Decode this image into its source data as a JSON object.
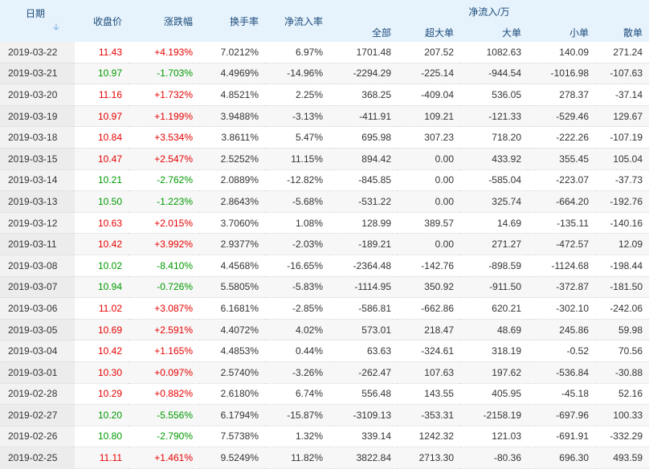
{
  "columns": {
    "date": "日期",
    "close": "收盘价",
    "change": "涨跌幅",
    "turnover": "换手率",
    "net_ratio": "净流入率",
    "net_inflow_group": "净流入/万",
    "total": "全部",
    "xlarge": "超大单",
    "large": "大单",
    "small": "小单",
    "retail": "散单"
  },
  "colors": {
    "up": "#e60000",
    "down": "#009900",
    "header_bg": "#e7f3fc"
  },
  "rows": [
    {
      "date": "2019-03-22",
      "close": "11.43",
      "change": "+4.193%",
      "turnover": "7.0212%",
      "ratio": "6.97%",
      "total": "1701.48",
      "xlarge": "207.52",
      "large": "1082.63",
      "small": "140.09",
      "retail": "271.24",
      "dir": "up"
    },
    {
      "date": "2019-03-21",
      "close": "10.97",
      "change": "-1.703%",
      "turnover": "4.4969%",
      "ratio": "-14.96%",
      "total": "-2294.29",
      "xlarge": "-225.14",
      "large": "-944.54",
      "small": "-1016.98",
      "retail": "-107.63",
      "dir": "down"
    },
    {
      "date": "2019-03-20",
      "close": "11.16",
      "change": "+1.732%",
      "turnover": "4.8521%",
      "ratio": "2.25%",
      "total": "368.25",
      "xlarge": "-409.04",
      "large": "536.05",
      "small": "278.37",
      "retail": "-37.14",
      "dir": "up"
    },
    {
      "date": "2019-03-19",
      "close": "10.97",
      "change": "+1.199%",
      "turnover": "3.9488%",
      "ratio": "-3.13%",
      "total": "-411.91",
      "xlarge": "109.21",
      "large": "-121.33",
      "small": "-529.46",
      "retail": "129.67",
      "dir": "up"
    },
    {
      "date": "2019-03-18",
      "close": "10.84",
      "change": "+3.534%",
      "turnover": "3.8611%",
      "ratio": "5.47%",
      "total": "695.98",
      "xlarge": "307.23",
      "large": "718.20",
      "small": "-222.26",
      "retail": "-107.19",
      "dir": "up"
    },
    {
      "date": "2019-03-15",
      "close": "10.47",
      "change": "+2.547%",
      "turnover": "2.5252%",
      "ratio": "11.15%",
      "total": "894.42",
      "xlarge": "0.00",
      "large": "433.92",
      "small": "355.45",
      "retail": "105.04",
      "dir": "up"
    },
    {
      "date": "2019-03-14",
      "close": "10.21",
      "change": "-2.762%",
      "turnover": "2.0889%",
      "ratio": "-12.82%",
      "total": "-845.85",
      "xlarge": "0.00",
      "large": "-585.04",
      "small": "-223.07",
      "retail": "-37.73",
      "dir": "down"
    },
    {
      "date": "2019-03-13",
      "close": "10.50",
      "change": "-1.223%",
      "turnover": "2.8643%",
      "ratio": "-5.68%",
      "total": "-531.22",
      "xlarge": "0.00",
      "large": "325.74",
      "small": "-664.20",
      "retail": "-192.76",
      "dir": "down"
    },
    {
      "date": "2019-03-12",
      "close": "10.63",
      "change": "+2.015%",
      "turnover": "3.7060%",
      "ratio": "1.08%",
      "total": "128.99",
      "xlarge": "389.57",
      "large": "14.69",
      "small": "-135.11",
      "retail": "-140.16",
      "dir": "up"
    },
    {
      "date": "2019-03-11",
      "close": "10.42",
      "change": "+3.992%",
      "turnover": "2.9377%",
      "ratio": "-2.03%",
      "total": "-189.21",
      "xlarge": "0.00",
      "large": "271.27",
      "small": "-472.57",
      "retail": "12.09",
      "dir": "up"
    },
    {
      "date": "2019-03-08",
      "close": "10.02",
      "change": "-8.410%",
      "turnover": "4.4568%",
      "ratio": "-16.65%",
      "total": "-2364.48",
      "xlarge": "-142.76",
      "large": "-898.59",
      "small": "-1124.68",
      "retail": "-198.44",
      "dir": "down"
    },
    {
      "date": "2019-03-07",
      "close": "10.94",
      "change": "-0.726%",
      "turnover": "5.5805%",
      "ratio": "-5.83%",
      "total": "-1114.95",
      "xlarge": "350.92",
      "large": "-911.50",
      "small": "-372.87",
      "retail": "-181.50",
      "dir": "down"
    },
    {
      "date": "2019-03-06",
      "close": "11.02",
      "change": "+3.087%",
      "turnover": "6.1681%",
      "ratio": "-2.85%",
      "total": "-586.81",
      "xlarge": "-662.86",
      "large": "620.21",
      "small": "-302.10",
      "retail": "-242.06",
      "dir": "up"
    },
    {
      "date": "2019-03-05",
      "close": "10.69",
      "change": "+2.591%",
      "turnover": "4.4072%",
      "ratio": "4.02%",
      "total": "573.01",
      "xlarge": "218.47",
      "large": "48.69",
      "small": "245.86",
      "retail": "59.98",
      "dir": "up"
    },
    {
      "date": "2019-03-04",
      "close": "10.42",
      "change": "+1.165%",
      "turnover": "4.4853%",
      "ratio": "0.44%",
      "total": "63.63",
      "xlarge": "-324.61",
      "large": "318.19",
      "small": "-0.52",
      "retail": "70.56",
      "dir": "up"
    },
    {
      "date": "2019-03-01",
      "close": "10.30",
      "change": "+0.097%",
      "turnover": "2.5740%",
      "ratio": "-3.26%",
      "total": "-262.47",
      "xlarge": "107.63",
      "large": "197.62",
      "small": "-536.84",
      "retail": "-30.88",
      "dir": "up"
    },
    {
      "date": "2019-02-28",
      "close": "10.29",
      "change": "+0.882%",
      "turnover": "2.6180%",
      "ratio": "6.74%",
      "total": "556.48",
      "xlarge": "143.55",
      "large": "405.95",
      "small": "-45.18",
      "retail": "52.16",
      "dir": "up"
    },
    {
      "date": "2019-02-27",
      "close": "10.20",
      "change": "-5.556%",
      "turnover": "6.1794%",
      "ratio": "-15.87%",
      "total": "-3109.13",
      "xlarge": "-353.31",
      "large": "-2158.19",
      "small": "-697.96",
      "retail": "100.33",
      "dir": "down"
    },
    {
      "date": "2019-02-26",
      "close": "10.80",
      "change": "-2.790%",
      "turnover": "7.5738%",
      "ratio": "1.32%",
      "total": "339.14",
      "xlarge": "1242.32",
      "large": "121.03",
      "small": "-691.91",
      "retail": "-332.29",
      "dir": "down"
    },
    {
      "date": "2019-02-25",
      "close": "11.11",
      "change": "+1.461%",
      "turnover": "9.5249%",
      "ratio": "11.82%",
      "total": "3822.84",
      "xlarge": "2713.30",
      "large": "-80.36",
      "small": "696.30",
      "retail": "493.59",
      "dir": "up"
    }
  ]
}
